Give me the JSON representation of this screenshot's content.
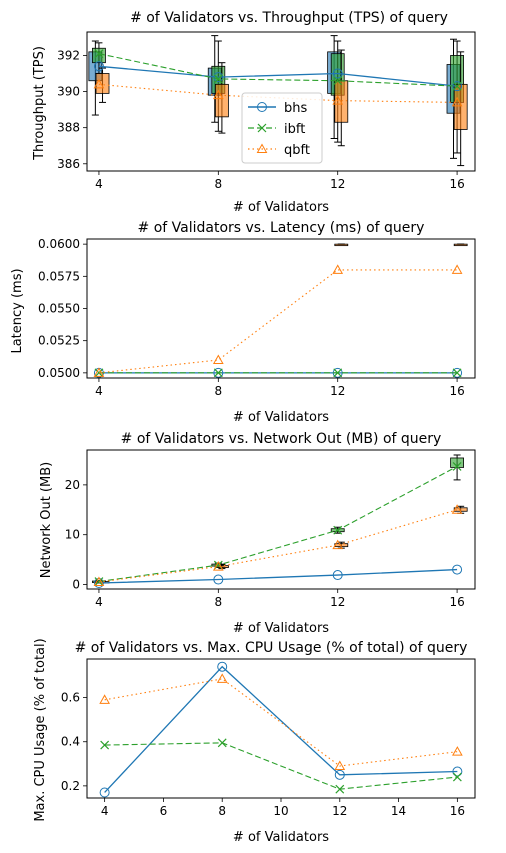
{
  "series_styles": [
    {
      "key": "bhs",
      "color": "#1f77b4",
      "marker": "circle",
      "dash": ""
    },
    {
      "key": "ibft",
      "color": "#2ca02c",
      "marker": "x",
      "dash": "6,3"
    },
    {
      "key": "qbft",
      "color": "#ff7f0e",
      "marker": "triangle",
      "dash": "1.5,3"
    }
  ],
  "chart_data": [
    {
      "type": "line",
      "title": "# of Validators vs. Throughput (TPS) of query",
      "xlabel": "# of Validators",
      "ylabel": "Throughput (TPS)",
      "x": [
        4,
        8,
        12,
        16
      ],
      "xlim": [
        3.6,
        16.6
      ],
      "xticks": [
        4,
        8,
        12,
        16
      ],
      "ylim": [
        385.6,
        393.3
      ],
      "yticks": [
        386,
        388,
        390,
        392
      ],
      "legend": "center",
      "series": [
        {
          "name": "bhs",
          "values": [
            391.4,
            390.8,
            391.0,
            390.3
          ]
        },
        {
          "name": "ibft",
          "values": [
            392.1,
            390.7,
            390.6,
            390.3
          ]
        },
        {
          "name": "qbft",
          "values": [
            390.4,
            389.8,
            389.5,
            389.4
          ]
        }
      ],
      "boxes": [
        {
          "series": "bhs",
          "x": 4,
          "q1": 390.6,
          "q3": 392.2,
          "lo": 388.7,
          "hi": 392.8
        },
        {
          "series": "ibft",
          "x": 4,
          "q1": 391.6,
          "q3": 392.4,
          "lo": 391.0,
          "hi": 392.7
        },
        {
          "series": "qbft",
          "x": 4,
          "q1": 389.9,
          "q3": 391.0,
          "lo": 389.4,
          "hi": 391.3
        },
        {
          "series": "bhs",
          "x": 8,
          "q1": 389.8,
          "q3": 391.3,
          "lo": 388.3,
          "hi": 393.1
        },
        {
          "series": "ibft",
          "x": 8,
          "q1": 389.9,
          "q3": 391.4,
          "lo": 387.8,
          "hi": 392.8
        },
        {
          "series": "qbft",
          "x": 8,
          "q1": 388.6,
          "q3": 390.4,
          "lo": 387.7,
          "hi": 391.6
        },
        {
          "series": "bhs",
          "x": 12,
          "q1": 389.9,
          "q3": 392.2,
          "lo": 387.4,
          "hi": 393.1
        },
        {
          "series": "ibft",
          "x": 12,
          "q1": 389.8,
          "q3": 392.1,
          "lo": 387.2,
          "hi": 392.8
        },
        {
          "series": "qbft",
          "x": 12,
          "q1": 388.3,
          "q3": 390.6,
          "lo": 387.0,
          "hi": 392.3
        },
        {
          "series": "bhs",
          "x": 16,
          "q1": 388.8,
          "q3": 391.5,
          "lo": 386.3,
          "hi": 392.9
        },
        {
          "series": "ibft",
          "x": 16,
          "q1": 389.4,
          "q3": 392.0,
          "lo": 386.6,
          "hi": 392.8
        },
        {
          "series": "qbft",
          "x": 16,
          "q1": 387.9,
          "q3": 390.4,
          "lo": 385.9,
          "hi": 392.2
        }
      ]
    },
    {
      "type": "line",
      "title": "# of Validators vs. Latency (ms) of query",
      "xlabel": "# of Validators",
      "ylabel": "Latency (ms)",
      "x": [
        4,
        8,
        12,
        16
      ],
      "xlim": [
        3.6,
        16.6
      ],
      "xticks": [
        4,
        8,
        12,
        16
      ],
      "ylim": [
        0.0496,
        0.0604
      ],
      "yticks": [
        0.05,
        0.0525,
        0.055,
        0.0575,
        0.06
      ],
      "ytick_labels": [
        "0.0500",
        "0.0525",
        "0.0550",
        "0.0575",
        "0.0600"
      ],
      "series": [
        {
          "name": "bhs",
          "values": [
            0.05,
            0.05,
            0.05,
            0.05
          ]
        },
        {
          "name": "ibft",
          "values": [
            0.05,
            0.05,
            0.05,
            0.05
          ]
        },
        {
          "name": "qbft",
          "values": [
            0.05,
            0.051,
            0.058,
            0.058
          ]
        }
      ],
      "boxes": [
        {
          "series": "qbft",
          "x": 12,
          "q1": 0.06,
          "q3": 0.06,
          "lo": 0.06,
          "hi": 0.06
        },
        {
          "series": "qbft",
          "x": 16,
          "q1": 0.06,
          "q3": 0.06,
          "lo": 0.06,
          "hi": 0.06
        }
      ]
    },
    {
      "type": "line",
      "title": "# of Validators vs. Network Out (MB) of query",
      "xlabel": "# of Validators",
      "ylabel": "Network Out (MB)",
      "x": [
        4,
        8,
        12,
        16
      ],
      "xlim": [
        3.6,
        16.6
      ],
      "xticks": [
        4,
        8,
        12,
        16
      ],
      "ylim": [
        -0.9,
        27
      ],
      "yticks": [
        0,
        10,
        20
      ],
      "series": [
        {
          "name": "bhs",
          "values": [
            0.3,
            1.0,
            1.9,
            3.0
          ]
        },
        {
          "name": "ibft",
          "values": [
            0.6,
            3.9,
            10.9,
            23.7
          ]
        },
        {
          "name": "qbft",
          "values": [
            0.5,
            3.6,
            7.9,
            15.0
          ]
        }
      ],
      "boxes": [
        {
          "series": "ibft",
          "x": 4,
          "q1": 0.5,
          "q3": 0.7,
          "lo": 0.4,
          "hi": 0.8
        },
        {
          "series": "qbft",
          "x": 4,
          "q1": 0.4,
          "q3": 0.6,
          "lo": 0.3,
          "hi": 0.7
        },
        {
          "series": "ibft",
          "x": 8,
          "q1": 3.7,
          "q3": 4.1,
          "lo": 3.5,
          "hi": 4.3
        },
        {
          "series": "qbft",
          "x": 8,
          "q1": 3.4,
          "q3": 3.8,
          "lo": 3.2,
          "hi": 4.0
        },
        {
          "series": "ibft",
          "x": 12,
          "q1": 10.6,
          "q3": 11.2,
          "lo": 10.3,
          "hi": 11.5
        },
        {
          "series": "qbft",
          "x": 12,
          "q1": 7.6,
          "q3": 8.2,
          "lo": 7.3,
          "hi": 8.5
        },
        {
          "series": "ibft",
          "x": 16,
          "q1": 23.5,
          "q3": 25.4,
          "lo": 21.0,
          "hi": 26.0
        },
        {
          "series": "qbft",
          "x": 16,
          "q1": 14.7,
          "q3": 15.4,
          "lo": 14.3,
          "hi": 15.7
        }
      ]
    },
    {
      "type": "line",
      "title": "# of Validators vs. Max. CPU Usage (% of total) of query",
      "xlabel": "# of Validators",
      "ylabel": "Max. CPU Usage (% of total)",
      "x": [
        4,
        8,
        12,
        16
      ],
      "xlim": [
        3.4,
        16.6
      ],
      "xticks": [
        4,
        6,
        8,
        10,
        12,
        14,
        16
      ],
      "ylim": [
        0.145,
        0.775
      ],
      "yticks": [
        0.2,
        0.4,
        0.6
      ],
      "series": [
        {
          "name": "bhs",
          "values": [
            0.17,
            0.74,
            0.25,
            0.265
          ]
        },
        {
          "name": "ibft",
          "values": [
            0.385,
            0.395,
            0.185,
            0.24
          ]
        },
        {
          "name": "qbft",
          "values": [
            0.59,
            0.685,
            0.29,
            0.355
          ]
        }
      ]
    }
  ]
}
